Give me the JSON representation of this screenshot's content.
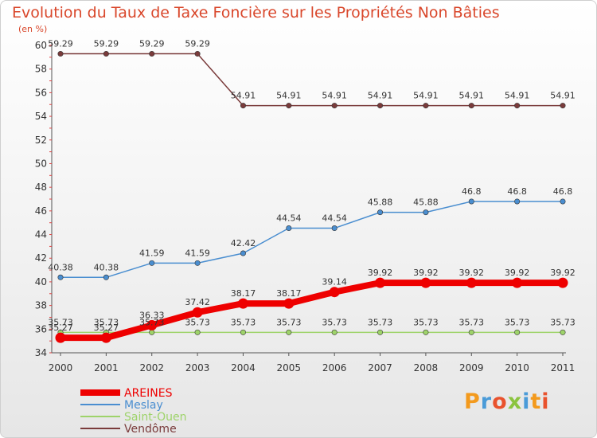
{
  "page": {
    "title": "Evolution du Taux de Taxe Foncière sur les Propriétés Non Bâties",
    "unit_label": "(en %)",
    "brand": "Proxiti"
  },
  "chart_data": {
    "type": "line",
    "title": "Evolution du Taux de Taxe Foncière sur les Propriétés Non Bâties",
    "ylabel": "(en %)",
    "xlabel": "",
    "x": [
      "2000",
      "2001",
      "2002",
      "2003",
      "2004",
      "2005",
      "2006",
      "2007",
      "2008",
      "2009",
      "2010",
      "2011"
    ],
    "ylim": [
      34,
      60
    ],
    "yticks": [
      34,
      36,
      38,
      40,
      42,
      44,
      46,
      48,
      50,
      52,
      54,
      56,
      58,
      60
    ],
    "legend_position": "bottom-left",
    "series": [
      {
        "name": "AREINES",
        "color": "#ee0000",
        "emphasis": true,
        "values": [
          35.27,
          35.27,
          36.33,
          37.42,
          38.17,
          38.17,
          39.14,
          39.92,
          39.92,
          39.92,
          39.92,
          39.92
        ],
        "labels": [
          "35.27",
          "35.27",
          "36.33",
          "37.42",
          "38.17",
          "38.17",
          "39.14",
          "39.92",
          "39.92",
          "39.92",
          "39.92",
          "39.92"
        ]
      },
      {
        "name": "Meslay",
        "color": "#4a8ed0",
        "values": [
          40.38,
          40.38,
          41.59,
          41.59,
          42.42,
          44.54,
          44.54,
          45.88,
          45.88,
          46.8,
          46.8,
          46.8
        ],
        "labels": [
          "40.38",
          "40.38",
          "41.59",
          "41.59",
          "42.42",
          "44.54",
          "44.54",
          "45.88",
          "45.88",
          "46.8",
          "46.8",
          "46.8"
        ]
      },
      {
        "name": "Saint-Ouen",
        "color": "#9ed36a",
        "values": [
          35.73,
          35.73,
          35.73,
          35.73,
          35.73,
          35.73,
          35.73,
          35.73,
          35.73,
          35.73,
          35.73,
          35.73
        ],
        "labels": [
          "35.73",
          "35.73",
          "35.73",
          "35.73",
          "35.73",
          "35.73",
          "35.73",
          "35.73",
          "35.73",
          "35.73",
          "35.73",
          "35.73"
        ]
      },
      {
        "name": "Vendôme",
        "color": "#7a3b3b",
        "values": [
          59.29,
          59.29,
          59.29,
          59.29,
          54.91,
          54.91,
          54.91,
          54.91,
          54.91,
          54.91,
          54.91,
          54.91
        ],
        "labels": [
          "59.29",
          "59.29",
          "59.29",
          "59.29",
          "54.91",
          "54.91",
          "54.91",
          "54.91",
          "54.91",
          "54.91",
          "54.91",
          "54.91"
        ]
      }
    ],
    "grid": false
  }
}
